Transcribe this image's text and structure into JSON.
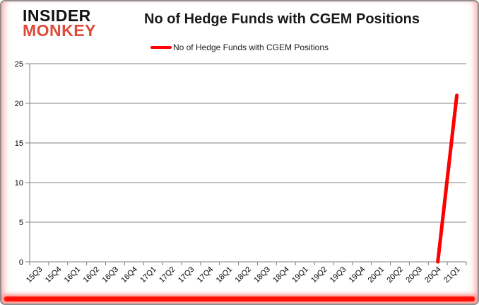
{
  "page": {
    "background": "#ffffff",
    "border_color": "#8f8f8f",
    "bottom_bar_color": "#ff1205"
  },
  "logo": {
    "line1": "INSIDER",
    "line2": "MONKEY",
    "line1_color": "#111111",
    "line2_color": "#dd4b39"
  },
  "header": {
    "title": "No of Hedge Funds with CGEM Positions"
  },
  "legend": {
    "label": "No of Hedge Funds with CGEM Positions"
  },
  "chart_data": {
    "type": "line",
    "title": "No of Hedge Funds with CGEM Positions",
    "categories": [
      "15Q3",
      "15Q4",
      "16Q1",
      "16Q2",
      "16Q3",
      "16Q4",
      "17Q1",
      "17Q2",
      "17Q3",
      "17Q4",
      "18Q1",
      "18Q2",
      "18Q3",
      "18Q4",
      "19Q1",
      "19Q2",
      "19Q3",
      "19Q4",
      "20Q1",
      "20Q2",
      "20Q3",
      "20Q4",
      "21Q1"
    ],
    "series": [
      {
        "name": "No of Hedge Funds with CGEM Positions",
        "color": "#fe0000",
        "values": [
          null,
          null,
          null,
          null,
          null,
          null,
          null,
          null,
          null,
          null,
          null,
          null,
          null,
          null,
          null,
          null,
          null,
          null,
          null,
          null,
          null,
          0,
          21
        ]
      }
    ],
    "xlabel": "",
    "ylabel": "",
    "ylim": [
      0,
      25
    ],
    "yticks": [
      0,
      5,
      10,
      15,
      20,
      25
    ],
    "grid": true,
    "legend_position": "top",
    "grid_color": "#808080",
    "axis_color": "#808080",
    "tick_label_color": "#000000",
    "tick_font_size": 11
  }
}
